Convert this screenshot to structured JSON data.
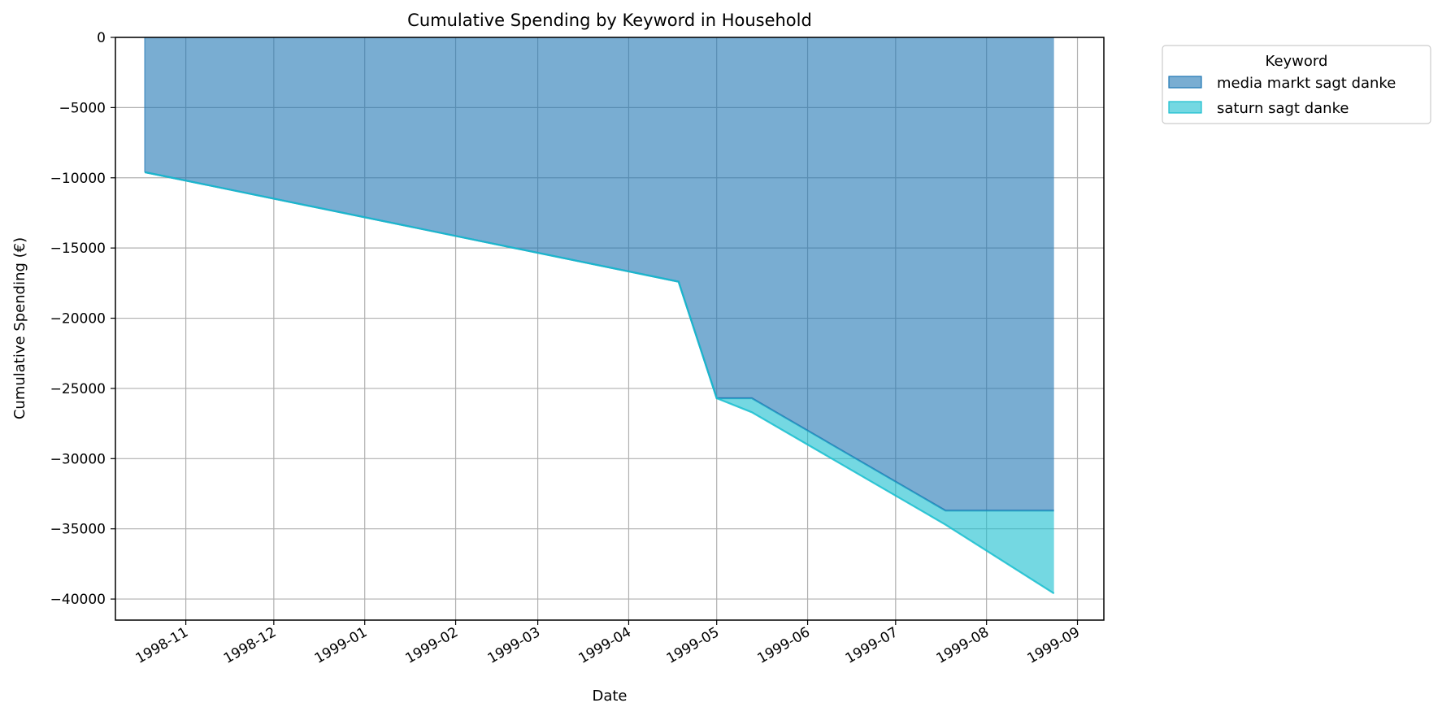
{
  "chart_data": {
    "type": "area",
    "stacked": true,
    "title": "Cumulative Spending by Keyword in Household",
    "xlabel": "Date",
    "ylabel": "Cumulative Spending (€)",
    "xlim": [
      "1998-10-08",
      "1999-09-10"
    ],
    "ylim": [
      -41500,
      0
    ],
    "grid": true,
    "legend": {
      "title": "Keyword",
      "placement": "outside top-right"
    },
    "x_ticks": [
      "1998-11",
      "1998-12",
      "1999-01",
      "1999-02",
      "1999-03",
      "1999-04",
      "1999-05",
      "1999-06",
      "1999-07",
      "1999-08",
      "1999-09"
    ],
    "y_ticks": [
      0,
      -5000,
      -10000,
      -15000,
      -20000,
      -25000,
      -30000,
      -35000,
      -40000
    ],
    "dates": [
      "1998-10-18",
      "1999-04-18",
      "1999-05-01",
      "1999-05-13",
      "1999-07-18",
      "1999-08-24"
    ],
    "series": [
      {
        "name": "media markt sagt danke",
        "color": "#1f77b4",
        "values": [
          -9600,
          -17400,
          -25700,
          -25700,
          -33700,
          -33700
        ]
      },
      {
        "name": "saturn sagt danke",
        "color": "#17becf",
        "values": [
          0,
          0,
          0,
          -1000,
          -1000,
          -5900
        ]
      }
    ]
  }
}
